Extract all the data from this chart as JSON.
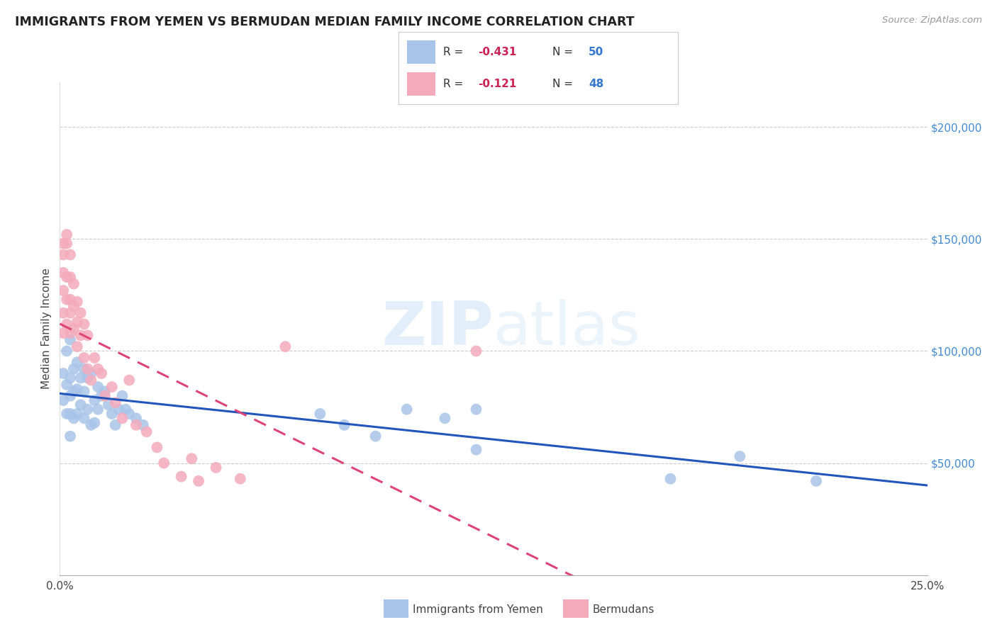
{
  "title": "IMMIGRANTS FROM YEMEN VS BERMUDAN MEDIAN FAMILY INCOME CORRELATION CHART",
  "source": "Source: ZipAtlas.com",
  "ylabel": "Median Family Income",
  "watermark": "ZIPatlas",
  "blue_R": -0.431,
  "blue_N": 50,
  "pink_R": -0.121,
  "pink_N": 48,
  "blue_color": "#a8c4e8",
  "pink_color": "#f4aabb",
  "blue_line_color": "#2255bb",
  "pink_line_color": "#dd4477",
  "ytick_labels": [
    "$50,000",
    "$100,000",
    "$150,000",
    "$200,000"
  ],
  "ytick_values": [
    50000,
    100000,
    150000,
    200000
  ],
  "ylim": [
    0,
    220000
  ],
  "xlim": [
    0.0,
    0.25
  ],
  "legend_label_blue": "R =  -0.431   N = 50",
  "legend_label_pink": "R =  -0.121   N = 48",
  "blue_x": [
    0.001,
    0.001,
    0.002,
    0.002,
    0.002,
    0.003,
    0.003,
    0.003,
    0.003,
    0.003,
    0.004,
    0.004,
    0.004,
    0.005,
    0.005,
    0.005,
    0.006,
    0.006,
    0.007,
    0.007,
    0.007,
    0.008,
    0.008,
    0.009,
    0.009,
    0.01,
    0.01,
    0.011,
    0.011,
    0.012,
    0.013,
    0.014,
    0.015,
    0.016,
    0.017,
    0.018,
    0.019,
    0.02,
    0.022,
    0.024,
    0.075,
    0.082,
    0.091,
    0.1,
    0.111,
    0.12,
    0.12,
    0.176,
    0.196,
    0.218
  ],
  "blue_y": [
    90000,
    78000,
    100000,
    85000,
    72000,
    105000,
    88000,
    80000,
    72000,
    62000,
    92000,
    82000,
    70000,
    95000,
    83000,
    72000,
    88000,
    76000,
    92000,
    82000,
    70000,
    88000,
    74000,
    90000,
    67000,
    78000,
    68000,
    84000,
    74000,
    80000,
    82000,
    76000,
    72000,
    67000,
    74000,
    80000,
    74000,
    72000,
    70000,
    67000,
    72000,
    67000,
    62000,
    74000,
    70000,
    74000,
    56000,
    43000,
    53000,
    42000
  ],
  "pink_x": [
    0.001,
    0.001,
    0.001,
    0.001,
    0.001,
    0.001,
    0.002,
    0.002,
    0.002,
    0.002,
    0.002,
    0.003,
    0.003,
    0.003,
    0.003,
    0.003,
    0.004,
    0.004,
    0.004,
    0.005,
    0.005,
    0.005,
    0.006,
    0.006,
    0.007,
    0.007,
    0.008,
    0.008,
    0.009,
    0.01,
    0.011,
    0.012,
    0.013,
    0.015,
    0.016,
    0.018,
    0.02,
    0.022,
    0.025,
    0.028,
    0.03,
    0.035,
    0.038,
    0.04,
    0.045,
    0.052,
    0.065,
    0.12
  ],
  "pink_y": [
    148000,
    143000,
    135000,
    127000,
    117000,
    108000,
    152000,
    148000,
    133000,
    123000,
    112000,
    143000,
    133000,
    123000,
    117000,
    108000,
    130000,
    120000,
    110000,
    122000,
    113000,
    102000,
    117000,
    107000,
    112000,
    97000,
    107000,
    92000,
    87000,
    97000,
    92000,
    90000,
    80000,
    84000,
    77000,
    70000,
    87000,
    67000,
    64000,
    57000,
    50000,
    44000,
    52000,
    42000,
    48000,
    43000,
    102000,
    100000
  ]
}
